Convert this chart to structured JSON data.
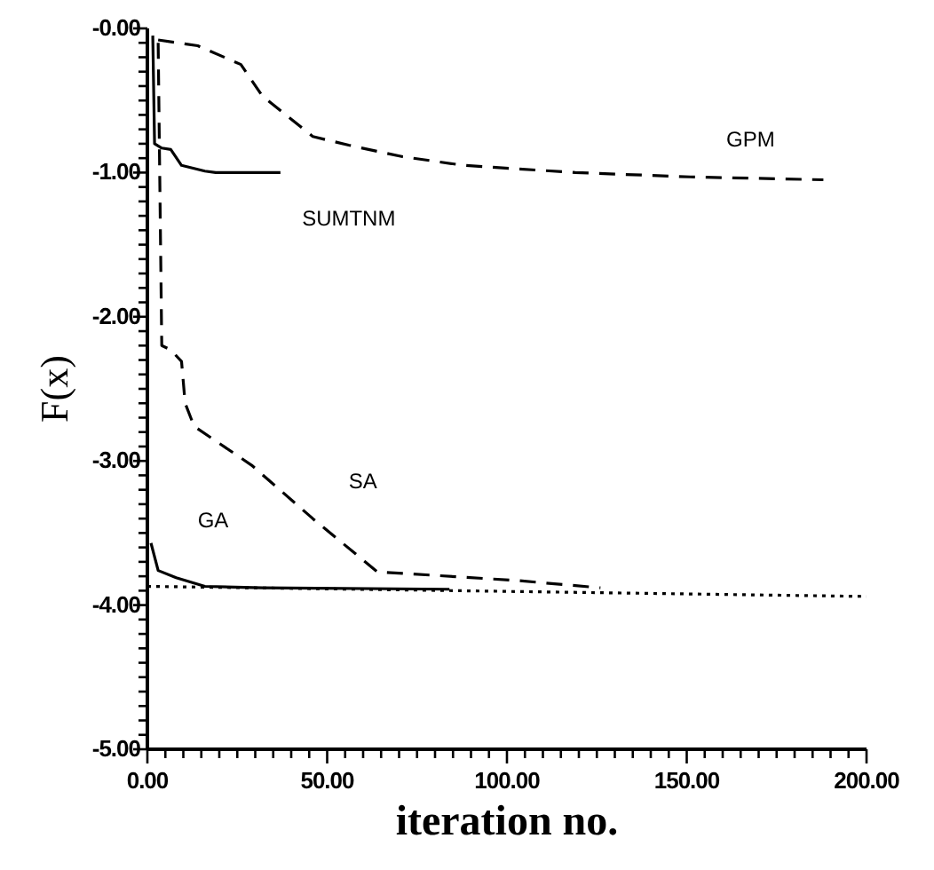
{
  "chart_data": {
    "type": "line",
    "xlabel": "iteration no.",
    "ylabel": "F(x)",
    "xlim": [
      0,
      200
    ],
    "ylim": [
      -5,
      0
    ],
    "xticks": [
      {
        "value": 0,
        "label": "0.00"
      },
      {
        "value": 5,
        "label": null
      },
      {
        "value": 10,
        "label": null
      },
      {
        "value": 15,
        "label": null
      },
      {
        "value": 20,
        "label": null
      },
      {
        "value": 25,
        "label": null
      },
      {
        "value": 30,
        "label": null
      },
      {
        "value": 35,
        "label": null
      },
      {
        "value": 40,
        "label": null
      },
      {
        "value": 45,
        "label": null
      },
      {
        "value": 50,
        "label": "50.00"
      },
      {
        "value": 55,
        "label": null
      },
      {
        "value": 60,
        "label": null
      },
      {
        "value": 65,
        "label": null
      },
      {
        "value": 70,
        "label": null
      },
      {
        "value": 75,
        "label": null
      },
      {
        "value": 80,
        "label": null
      },
      {
        "value": 85,
        "label": null
      },
      {
        "value": 90,
        "label": null
      },
      {
        "value": 95,
        "label": null
      },
      {
        "value": 100,
        "label": "100.00"
      },
      {
        "value": 105,
        "label": null
      },
      {
        "value": 110,
        "label": null
      },
      {
        "value": 115,
        "label": null
      },
      {
        "value": 120,
        "label": null
      },
      {
        "value": 125,
        "label": null
      },
      {
        "value": 130,
        "label": null
      },
      {
        "value": 135,
        "label": null
      },
      {
        "value": 140,
        "label": null
      },
      {
        "value": 145,
        "label": null
      },
      {
        "value": 150,
        "label": "150.00"
      },
      {
        "value": 155,
        "label": null
      },
      {
        "value": 160,
        "label": null
      },
      {
        "value": 165,
        "label": null
      },
      {
        "value": 170,
        "label": null
      },
      {
        "value": 175,
        "label": null
      },
      {
        "value": 180,
        "label": null
      },
      {
        "value": 185,
        "label": null
      },
      {
        "value": 190,
        "label": null
      },
      {
        "value": 195,
        "label": null
      },
      {
        "value": 200,
        "label": "200.00"
      }
    ],
    "yticks": [
      {
        "value": 0,
        "label": "-0.00"
      },
      {
        "value": -0.1,
        "label": null
      },
      {
        "value": -0.2,
        "label": null
      },
      {
        "value": -0.3,
        "label": null
      },
      {
        "value": -0.4,
        "label": null
      },
      {
        "value": -0.5,
        "label": null
      },
      {
        "value": -0.6,
        "label": null
      },
      {
        "value": -0.7,
        "label": null
      },
      {
        "value": -0.8,
        "label": null
      },
      {
        "value": -0.9,
        "label": null
      },
      {
        "value": -1,
        "label": "-1.00"
      },
      {
        "value": -1.1,
        "label": null
      },
      {
        "value": -1.2,
        "label": null
      },
      {
        "value": -1.3,
        "label": null
      },
      {
        "value": -1.4,
        "label": null
      },
      {
        "value": -1.5,
        "label": null
      },
      {
        "value": -1.6,
        "label": null
      },
      {
        "value": -1.7,
        "label": null
      },
      {
        "value": -1.8,
        "label": null
      },
      {
        "value": -1.9,
        "label": null
      },
      {
        "value": -2,
        "label": "-2.00"
      },
      {
        "value": -2.1,
        "label": null
      },
      {
        "value": -2.2,
        "label": null
      },
      {
        "value": -2.3,
        "label": null
      },
      {
        "value": -2.4,
        "label": null
      },
      {
        "value": -2.5,
        "label": null
      },
      {
        "value": -2.6,
        "label": null
      },
      {
        "value": -2.7,
        "label": null
      },
      {
        "value": -2.8,
        "label": null
      },
      {
        "value": -2.9,
        "label": null
      },
      {
        "value": -3,
        "label": "-3.00"
      },
      {
        "value": -3.1,
        "label": null
      },
      {
        "value": -3.2,
        "label": null
      },
      {
        "value": -3.3,
        "label": null
      },
      {
        "value": -3.4,
        "label": null
      },
      {
        "value": -3.5,
        "label": null
      },
      {
        "value": -3.6,
        "label": null
      },
      {
        "value": -3.7,
        "label": null
      },
      {
        "value": -3.8,
        "label": null
      },
      {
        "value": -3.9,
        "label": null
      },
      {
        "value": -4,
        "label": "-4.00"
      },
      {
        "value": -4.1,
        "label": null
      },
      {
        "value": -4.2,
        "label": null
      },
      {
        "value": -4.3,
        "label": null
      },
      {
        "value": -4.4,
        "label": null
      },
      {
        "value": -4.5,
        "label": null
      },
      {
        "value": -4.6,
        "label": null
      },
      {
        "value": -4.7,
        "label": null
      },
      {
        "value": -4.8,
        "label": null
      },
      {
        "value": -4.9,
        "label": null
      },
      {
        "value": -5,
        "label": "-5.00"
      }
    ],
    "grid": false,
    "series": [
      {
        "name": "GPM",
        "color": "#000000",
        "line_style": "dashed",
        "x": [
          3,
          14,
          26,
          32,
          40,
          46,
          56,
          71,
          88,
          119,
          151,
          188
        ],
        "values": [
          -0.08,
          -0.12,
          -0.25,
          -0.47,
          -0.63,
          -0.75,
          -0.81,
          -0.89,
          -0.95,
          -1.0,
          -1.03,
          -1.05
        ]
      },
      {
        "name": "SUMTNM",
        "color": "#000000",
        "line_style": "solid",
        "x": [
          1.5,
          2,
          4,
          6.5,
          9.5,
          16,
          19,
          37
        ],
        "values": [
          -0.05,
          -0.8,
          -0.83,
          -0.84,
          -0.95,
          -0.99,
          -1.0,
          -1.0
        ]
      },
      {
        "name": "SA",
        "color": "#000000",
        "line_style": "dashed",
        "x": [
          3,
          4,
          6.5,
          9.5,
          10.5,
          13,
          29,
          46,
          64,
          71,
          103,
          126
        ],
        "values": [
          -0.1,
          -2.2,
          -2.23,
          -2.31,
          -2.6,
          -2.76,
          -3.03,
          -3.4,
          -3.77,
          -3.78,
          -3.83,
          -3.88
        ]
      },
      {
        "name": "GA",
        "color": "#000000",
        "line_style": "solid",
        "x": [
          1,
          3,
          8,
          16,
          32,
          84
        ],
        "values": [
          -3.57,
          -3.76,
          -3.81,
          -3.87,
          -3.88,
          -3.89
        ]
      },
      {
        "color": "#000000",
        "line_style": "dotted",
        "x": [
          0,
          200
        ],
        "values": [
          -3.87,
          -3.94
        ]
      }
    ]
  }
}
